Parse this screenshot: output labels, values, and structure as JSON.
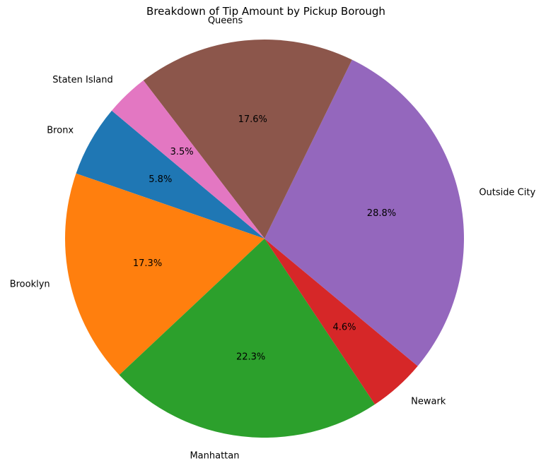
{
  "chart_data": {
    "type": "pie",
    "title": "Breakdown of Tip Amount by Pickup Borough",
    "start_angle_deg": 140,
    "direction": "counterclockwise",
    "categories": [
      "Bronx",
      "Brooklyn",
      "Manhattan",
      "Newark",
      "Outside City",
      "Queens",
      "Staten Island"
    ],
    "values": [
      5.8,
      17.3,
      22.3,
      4.6,
      28.8,
      17.6,
      3.5
    ],
    "labels": [
      "5.8%",
      "17.3%",
      "22.3%",
      "4.6%",
      "28.8%",
      "17.6%",
      "3.5%"
    ],
    "colors": [
      "#1f77b4",
      "#ff7f0e",
      "#2ca02c",
      "#d62728",
      "#9467bd",
      "#8c564b",
      "#e377c2"
    ]
  }
}
